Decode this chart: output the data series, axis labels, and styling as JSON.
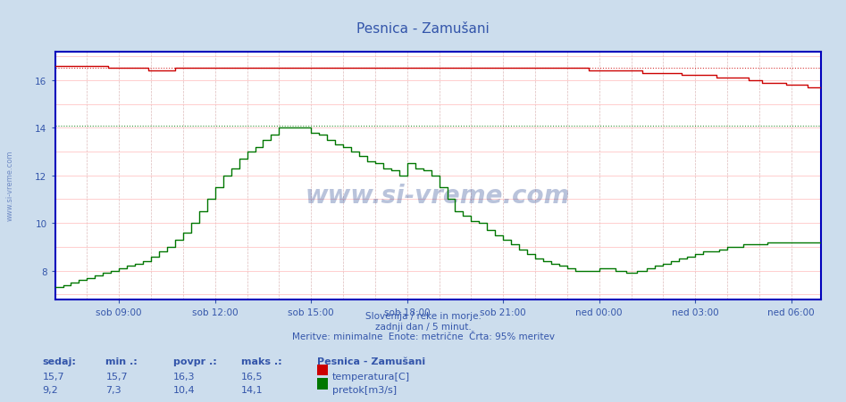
{
  "title": "Pesnica - Zamušani",
  "bg_color": "#ccdded",
  "plot_bg_color": "#ffffff",
  "border_color": "#0000bb",
  "text_color": "#3355aa",
  "subtitle_lines": [
    "Slovenija / reke in morje.",
    "zadnji dan / 5 minut.",
    "Meritve: minimalne  Enote: metrične  Črta: 95% meritev"
  ],
  "xlabel_ticks": [
    "sob 09:00",
    "sob 12:00",
    "sob 15:00",
    "sob 18:00",
    "sob 21:00",
    "ned 00:00",
    "ned 03:00",
    "ned 06:00"
  ],
  "ylim": [
    6.8,
    17.2
  ],
  "temp_color": "#cc0000",
  "flow_color": "#007700",
  "dotted_temp_max": 16.5,
  "dotted_flow_max": 14.1,
  "watermark": "www.si-vreme.com",
  "watermark_color": "#1a3a8a",
  "watermark_alpha": 0.3,
  "stats_headers": [
    "sedaj:",
    "min .:",
    "povpr .:",
    "maks .:"
  ],
  "stats_temp": [
    "15,7",
    "15,7",
    "16,3",
    "16,5"
  ],
  "stats_flow": [
    "9,2",
    "7,3",
    "10,4",
    "14,1"
  ],
  "legend_title": "Pesnica - Zamušani",
  "legend_temp_label": "temperatura[C]",
  "legend_flow_label": "pretok[m3/s]",
  "vgrid_color": "#ddaaaa",
  "hgrid_color": "#ffbbbb",
  "vgrid_dashed_color": "#ccccdd"
}
